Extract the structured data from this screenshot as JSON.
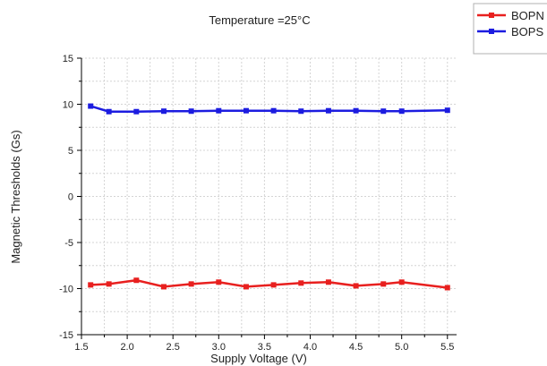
{
  "chart_data": {
    "type": "line",
    "title": "Temperature =25°C",
    "xlabel": "Supply Voltage (V)",
    "ylabel": "Magnetic Thresholds (Gs)",
    "xlim": [
      1.5,
      5.6
    ],
    "ylim": [
      -15,
      15
    ],
    "xticks": [
      "1.5",
      "2.0",
      "2.5",
      "3.0",
      "3.5",
      "4.0",
      "4.5",
      "5.0",
      "5.5"
    ],
    "xtick_values": [
      1.5,
      2.0,
      2.5,
      3.0,
      3.5,
      4.0,
      4.5,
      5.0,
      5.5
    ],
    "yticks": [
      "15",
      "10",
      "5",
      "0",
      "-5",
      "-10",
      "-15"
    ],
    "ytick_values": [
      15,
      10,
      5,
      0,
      -5,
      -10,
      -15
    ],
    "grid": true,
    "legend_position": "top-right",
    "x": [
      1.6,
      1.8,
      2.1,
      2.4,
      2.7,
      3.0,
      3.3,
      3.6,
      3.9,
      4.2,
      4.5,
      4.8,
      5.0,
      5.5
    ],
    "series": [
      {
        "name": "BOPN",
        "color": "#e8201f",
        "marker": "square",
        "values": [
          -9.6,
          -9.5,
          -9.1,
          -9.8,
          -9.5,
          -9.3,
          -9.8,
          -9.6,
          -9.4,
          -9.3,
          -9.7,
          -9.5,
          -9.3,
          -9.9
        ]
      },
      {
        "name": "BOPS",
        "color": "#1c1ce0",
        "marker": "square",
        "values": [
          9.8,
          9.2,
          9.2,
          9.25,
          9.25,
          9.3,
          9.3,
          9.3,
          9.25,
          9.3,
          9.3,
          9.25,
          9.25,
          9.35
        ]
      }
    ]
  }
}
